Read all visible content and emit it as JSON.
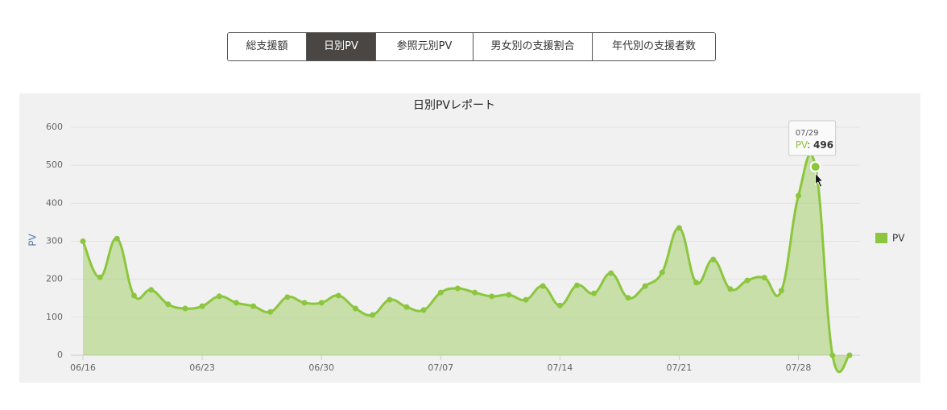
{
  "tabs": [
    "総支援額",
    "日別PV",
    "参照元別PV",
    "男女別の支援割合",
    "年代別の支援者数"
  ],
  "active_tab": 1,
  "chart_data": {
    "type": "area",
    "title": "日別PVレポート",
    "y_label": "PV",
    "categories": [
      "06/16",
      null,
      null,
      null,
      null,
      null,
      null,
      "06/23",
      null,
      null,
      null,
      null,
      null,
      null,
      "06/30",
      null,
      null,
      null,
      null,
      null,
      null,
      "07/07",
      null,
      null,
      null,
      null,
      null,
      null,
      "07/14",
      null,
      null,
      null,
      null,
      null,
      null,
      "07/21",
      null,
      null,
      null,
      null,
      null,
      null,
      "07/28",
      null,
      null,
      null
    ],
    "series": [
      {
        "name": "PV",
        "color": "#8cc63e",
        "values": [
          300,
          205,
          307,
          157,
          172,
          134,
          123,
          129,
          155,
          138,
          129,
          114,
          153,
          138,
          138,
          157,
          123,
          106,
          146,
          127,
          119,
          165,
          176,
          165,
          155,
          159,
          146,
          182,
          131,
          184,
          163,
          216,
          151,
          182,
          218,
          335,
          191,
          252,
          174,
          197,
          204,
          170,
          420,
          496,
          0,
          0
        ]
      }
    ],
    "ylim": [
      0,
      600
    ],
    "yticks": [
      0,
      100,
      200,
      300,
      400,
      500,
      600
    ],
    "grid": true,
    "legend": "right",
    "tooltip": {
      "category": "07/29"
    }
  }
}
